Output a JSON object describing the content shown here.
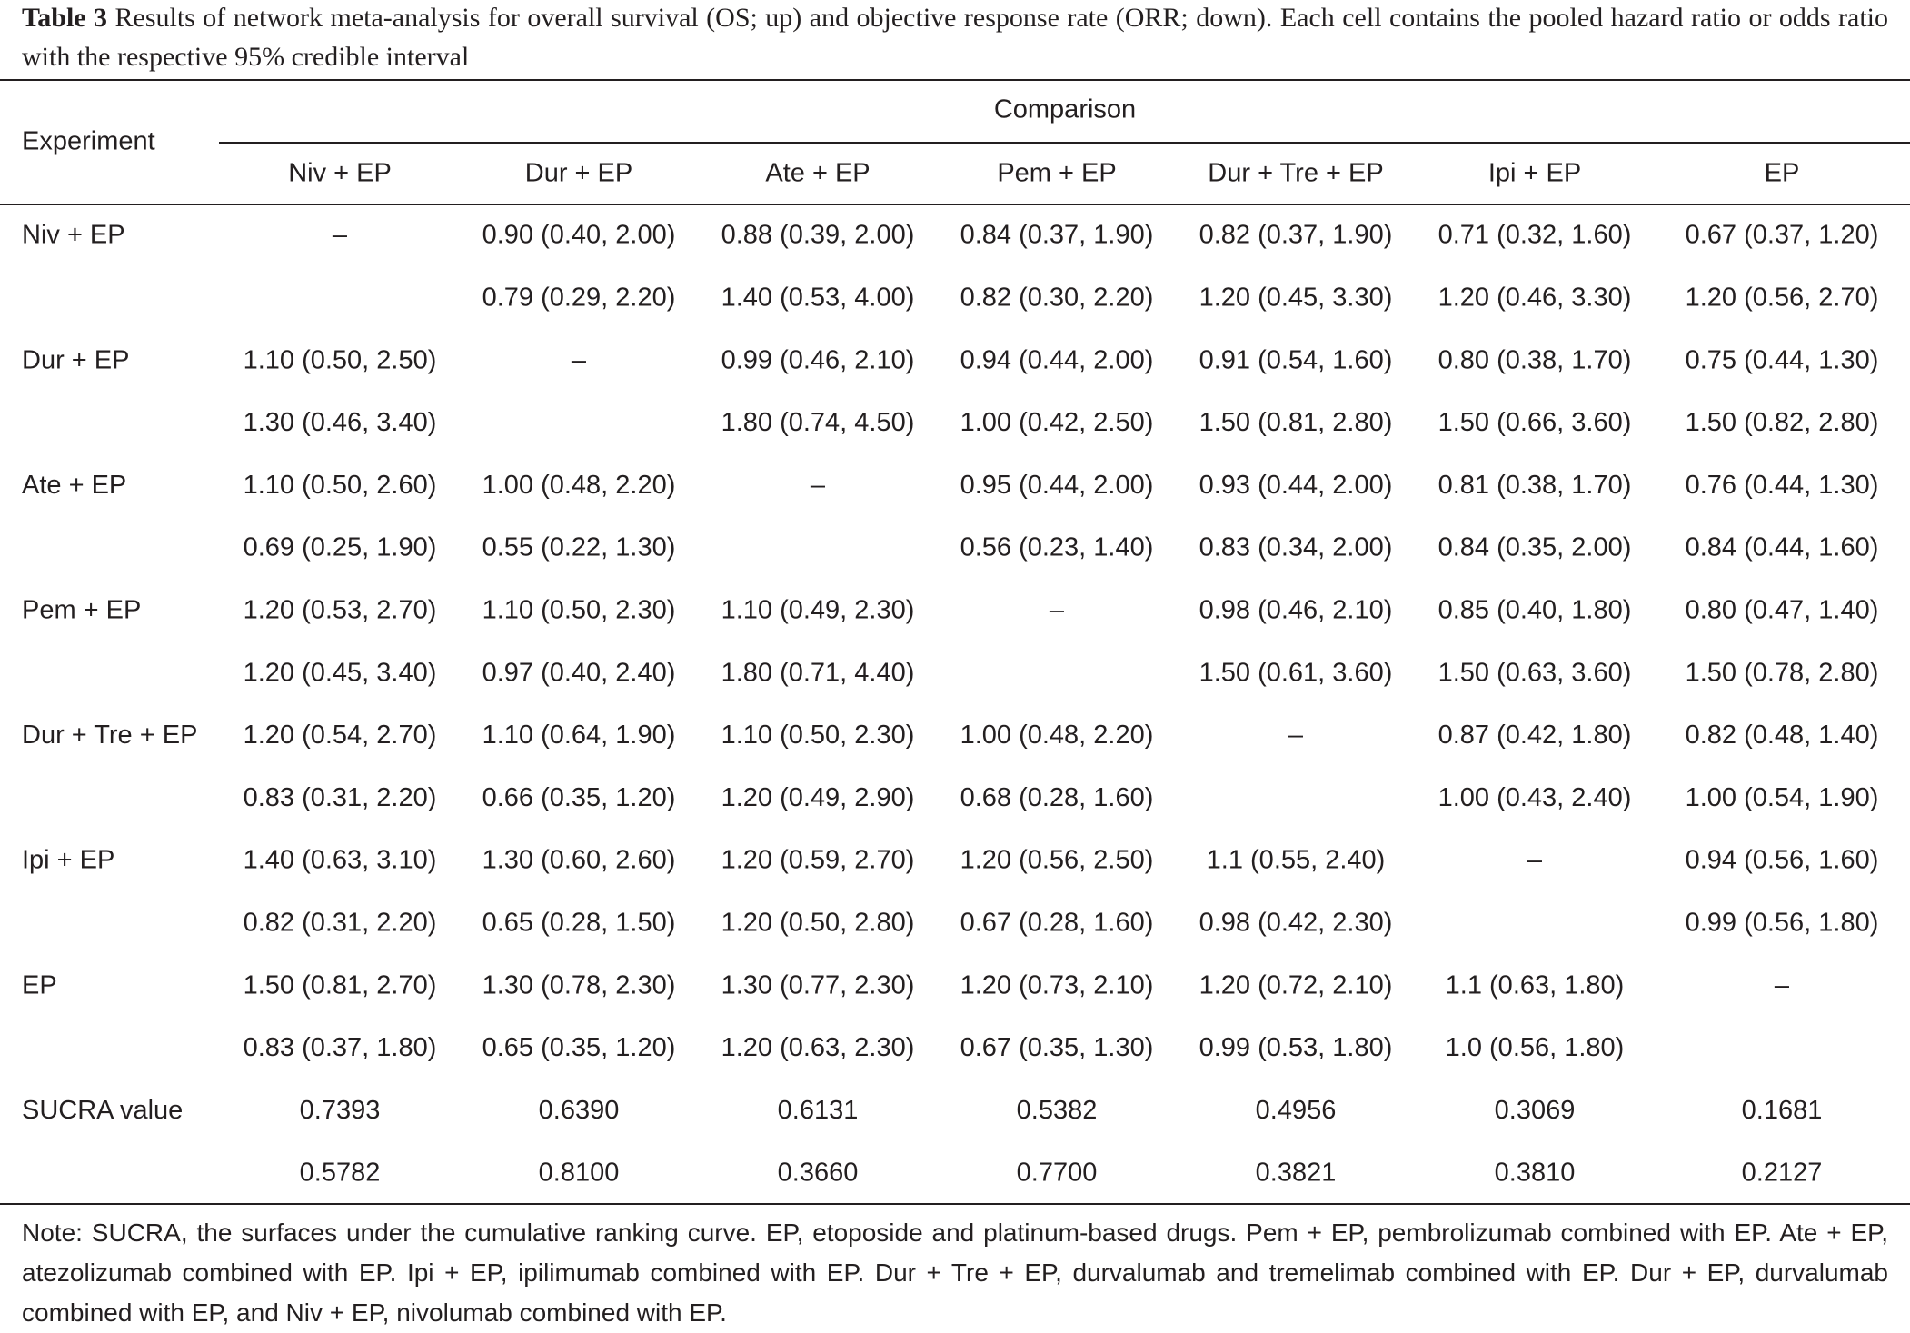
{
  "caption": {
    "label": "Table 3",
    "text": "Results of network meta-analysis for overall survival (OS; up) and objective response rate (ORR; down). Each cell contains the pooled hazard ratio or odds ratio with the respective 95% credible interval"
  },
  "table": {
    "row_header": "Experiment",
    "group_header": "Comparison",
    "columns": [
      "Niv + EP",
      "Dur + EP",
      "Ate + EP",
      "Pem + EP",
      "Dur + Tre + EP",
      "Ipi + EP",
      "EP"
    ],
    "rows": [
      {
        "label": "Niv + EP",
        "os": [
          "–",
          "0.90 (0.40, 2.00)",
          "0.88 (0.39, 2.00)",
          "0.84 (0.37, 1.90)",
          "0.82 (0.37, 1.90)",
          "0.71 (0.32, 1.60)",
          "0.67 (0.37, 1.20)"
        ],
        "orr": [
          null,
          "0.79 (0.29, 2.20)",
          "1.40 (0.53, 4.00)",
          "0.82 (0.30, 2.20)",
          "1.20 (0.45, 3.30)",
          "1.20 (0.46, 3.30)",
          "1.20 (0.56, 2.70)"
        ]
      },
      {
        "label": "Dur + EP",
        "os": [
          "1.10 (0.50, 2.50)",
          "–",
          "0.99 (0.46, 2.10)",
          "0.94 (0.44, 2.00)",
          "0.91 (0.54, 1.60)",
          "0.80 (0.38, 1.70)",
          "0.75 (0.44, 1.30)"
        ],
        "orr": [
          "1.30 (0.46, 3.40)",
          null,
          "1.80 (0.74, 4.50)",
          "1.00 (0.42, 2.50)",
          "1.50 (0.81, 2.80)",
          "1.50 (0.66, 3.60)",
          "1.50 (0.82, 2.80)"
        ]
      },
      {
        "label": "Ate + EP",
        "os": [
          "1.10 (0.50, 2.60)",
          "1.00 (0.48, 2.20)",
          "–",
          "0.95 (0.44, 2.00)",
          "0.93 (0.44, 2.00)",
          "0.81 (0.38, 1.70)",
          "0.76 (0.44, 1.30)"
        ],
        "orr": [
          "0.69 (0.25, 1.90)",
          "0.55 (0.22, 1.30)",
          null,
          "0.56 (0.23, 1.40)",
          "0.83 (0.34, 2.00)",
          "0.84 (0.35, 2.00)",
          "0.84 (0.44, 1.60)"
        ]
      },
      {
        "label": "Pem + EP",
        "os": [
          "1.20 (0.53, 2.70)",
          "1.10 (0.50, 2.30)",
          "1.10 (0.49, 2.30)",
          "–",
          "0.98 (0.46, 2.10)",
          "0.85 (0.40, 1.80)",
          "0.80 (0.47, 1.40)"
        ],
        "orr": [
          "1.20 (0.45, 3.40)",
          "0.97 (0.40, 2.40)",
          "1.80 (0.71, 4.40)",
          null,
          "1.50 (0.61, 3.60)",
          "1.50 (0.63, 3.60)",
          "1.50 (0.78, 2.80)"
        ]
      },
      {
        "label": "Dur + Tre + EP",
        "os": [
          "1.20 (0.54, 2.70)",
          "1.10 (0.64, 1.90)",
          "1.10 (0.50, 2.30)",
          "1.00 (0.48, 2.20)",
          "–",
          "0.87 (0.42, 1.80)",
          "0.82 (0.48, 1.40)"
        ],
        "orr": [
          "0.83 (0.31, 2.20)",
          "0.66 (0.35, 1.20)",
          "1.20 (0.49, 2.90)",
          "0.68 (0.28, 1.60)",
          null,
          "1.00 (0.43, 2.40)",
          "1.00 (0.54, 1.90)"
        ]
      },
      {
        "label": "Ipi + EP",
        "os": [
          "1.40 (0.63, 3.10)",
          "1.30 (0.60, 2.60)",
          "1.20 (0.59, 2.70)",
          "1.20 (0.56, 2.50)",
          "1.1 (0.55, 2.40)",
          "–",
          "0.94 (0.56, 1.60)"
        ],
        "orr": [
          "0.82 (0.31, 2.20)",
          "0.65 (0.28, 1.50)",
          "1.20 (0.50, 2.80)",
          "0.67 (0.28, 1.60)",
          "0.98 (0.42, 2.30)",
          null,
          "0.99 (0.56, 1.80)"
        ]
      },
      {
        "label": "EP",
        "os": [
          "1.50 (0.81, 2.70)",
          "1.30 (0.78, 2.30)",
          "1.30 (0.77, 2.30)",
          "1.20 (0.73, 2.10)",
          "1.20 (0.72, 2.10)",
          "1.1 (0.63, 1.80)",
          "–"
        ],
        "orr": [
          "0.83 (0.37, 1.80)",
          "0.65 (0.35, 1.20)",
          "1.20 (0.63, 2.30)",
          "0.67 (0.35, 1.30)",
          "0.99 (0.53, 1.80)",
          "1.0 (0.56, 1.80)",
          null
        ]
      },
      {
        "label": "SUCRA value",
        "os": [
          "0.7393",
          "0.6390",
          "0.6131",
          "0.5382",
          "0.4956",
          "0.3069",
          "0.1681"
        ],
        "orr": [
          "0.5782",
          "0.8100",
          "0.3660",
          "0.7700",
          "0.3821",
          "0.3810",
          "0.2127"
        ]
      }
    ]
  },
  "note": "Note: SUCRA, the surfaces under the cumulative ranking curve. EP, etoposide and platinum-based drugs. Pem + EP, pembrolizumab combined with EP. Ate + EP, atezolizumab combined with EP. Ipi + EP, ipilimumab combined with EP. Dur + Tre + EP, durvalumab and tremelimab combined with EP. Dur + EP, durvalumab combined with EP, and Niv + EP, nivolumab combined with EP."
}
